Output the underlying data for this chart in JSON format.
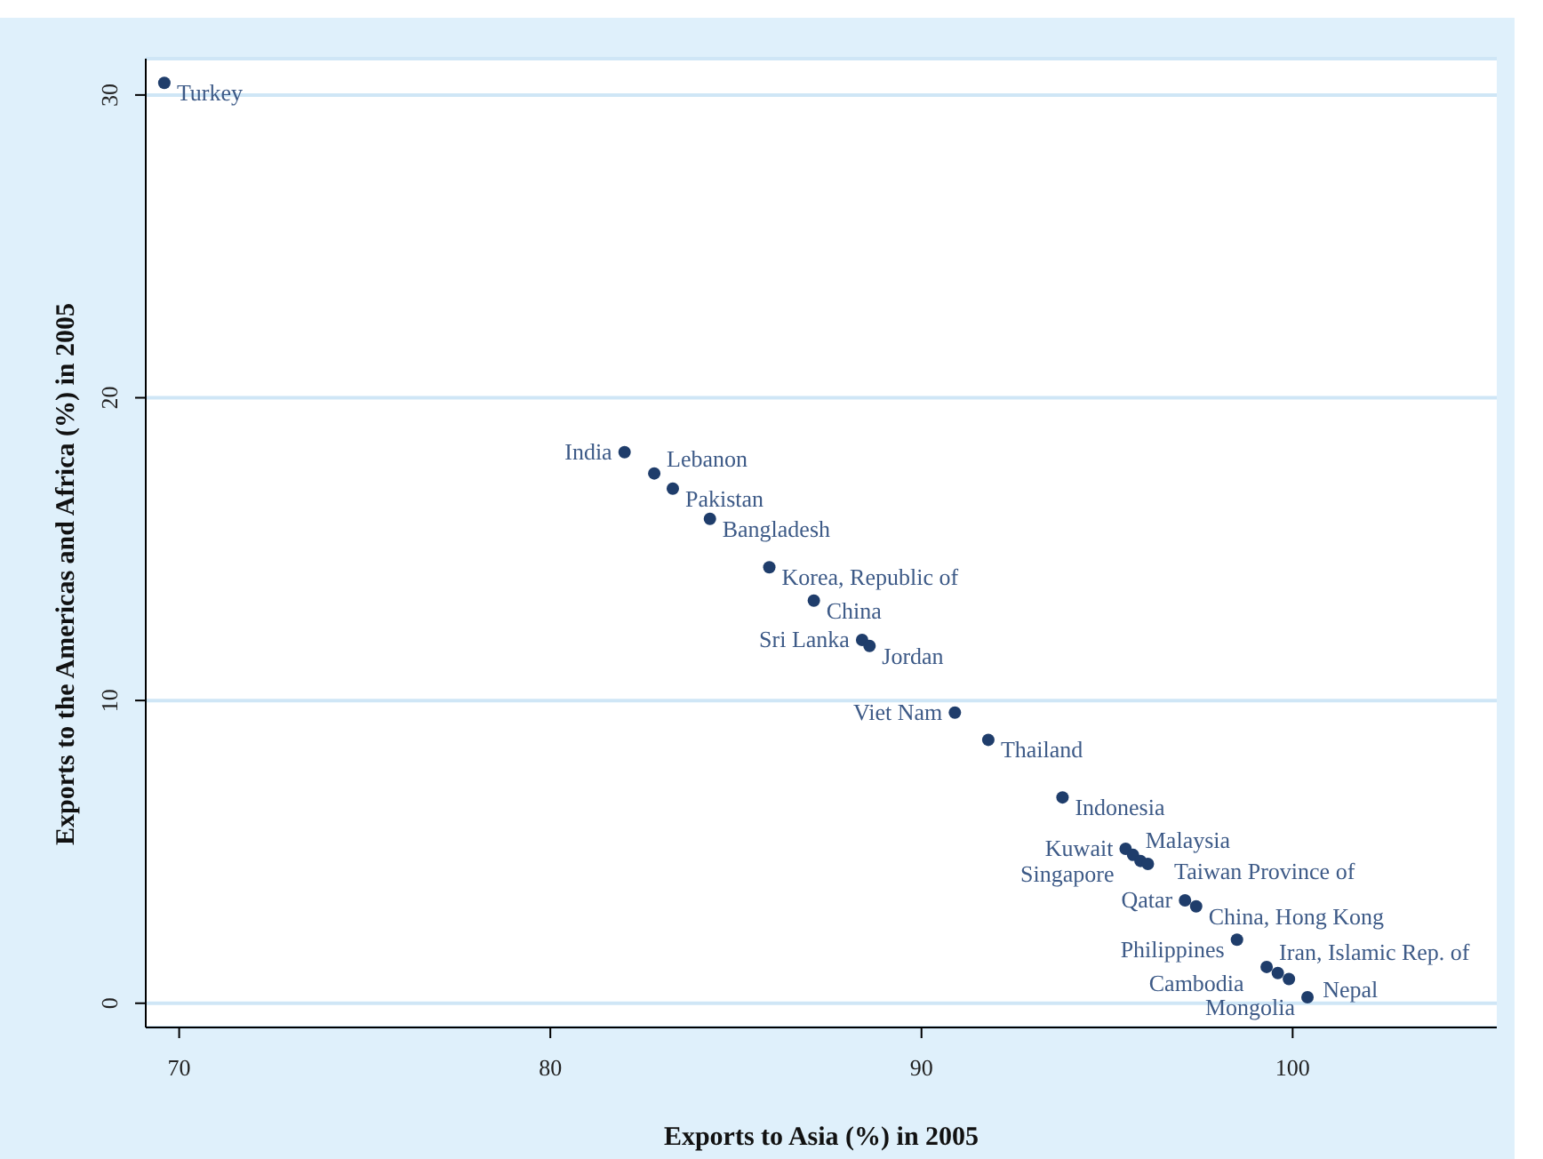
{
  "chart_data": {
    "type": "scatter",
    "xlabel": "Exports to Asia (%) in 2005",
    "ylabel": "Exports to the Americas and Africa  (%) in 2005",
    "x": [
      69.6,
      82.0,
      82.8,
      83.3,
      84.3,
      85.9,
      87.1,
      88.4,
      88.6,
      90.9,
      91.8,
      93.8,
      95.5,
      95.7,
      95.9,
      96.1,
      97.1,
      97.4,
      98.5,
      99.3,
      99.6,
      99.9,
      100.4
    ],
    "values": [
      30.4,
      18.2,
      17.5,
      17.0,
      16.0,
      14.4,
      13.3,
      12.0,
      11.8,
      9.6,
      8.7,
      6.8,
      5.1,
      4.9,
      4.7,
      4.6,
      3.4,
      3.2,
      2.1,
      1.2,
      1.0,
      0.8,
      0.2
    ],
    "color": "#1f3d6b",
    "marker": "circle",
    "xlim": [
      69.1,
      105.5
    ],
    "xticks": [
      70,
      80,
      90,
      100
    ],
    "ylim": [
      -0.8,
      31.2
    ],
    "yticks": [
      0,
      10,
      20,
      30
    ],
    "grid": "y",
    "legend": false,
    "annotations": [
      {
        "text": "Turkey",
        "x": 69.6,
        "y": 30.4
      },
      {
        "text": "India",
        "x": 82.0,
        "y": 18.2
      },
      {
        "text": "Lebanon",
        "x": 82.8,
        "y": 17.5
      },
      {
        "text": "Pakistan",
        "x": 83.3,
        "y": 17.0
      },
      {
        "text": "Bangladesh",
        "x": 84.3,
        "y": 16.0
      },
      {
        "text": "Korea, Republic of",
        "x": 85.9,
        "y": 14.4
      },
      {
        "text": "China",
        "x": 87.1,
        "y": 13.3
      },
      {
        "text": "Sri Lanka",
        "x": 88.4,
        "y": 12.0
      },
      {
        "text": "Jordan",
        "x": 88.6,
        "y": 11.8
      },
      {
        "text": "Viet Nam",
        "x": 90.9,
        "y": 9.6
      },
      {
        "text": "Thailand",
        "x": 91.8,
        "y": 8.7
      },
      {
        "text": "Indonesia",
        "x": 93.8,
        "y": 6.8
      },
      {
        "text": "Kuwait",
        "x": 95.5,
        "y": 5.1
      },
      {
        "text": "Malaysia",
        "x": 95.7,
        "y": 4.9
      },
      {
        "text": "Taiwan Province of",
        "x": 95.9,
        "y": 4.7
      },
      {
        "text": "Singapore",
        "x": 96.1,
        "y": 4.6
      },
      {
        "text": "Qatar",
        "x": 97.1,
        "y": 3.4
      },
      {
        "text": "China, Hong Kong",
        "x": 97.4,
        "y": 3.2
      },
      {
        "text": "Philippines",
        "x": 98.5,
        "y": 2.1
      },
      {
        "text": "Iran, Islamic Rep. of",
        "x": 99.3,
        "y": 1.2
      },
      {
        "text": "Cambodia",
        "x": 99.6,
        "y": 1.0
      },
      {
        "text": "Nepal",
        "x": 99.9,
        "y": 0.8
      },
      {
        "text": "Mongolia",
        "x": 100.4,
        "y": 0.2
      }
    ]
  }
}
